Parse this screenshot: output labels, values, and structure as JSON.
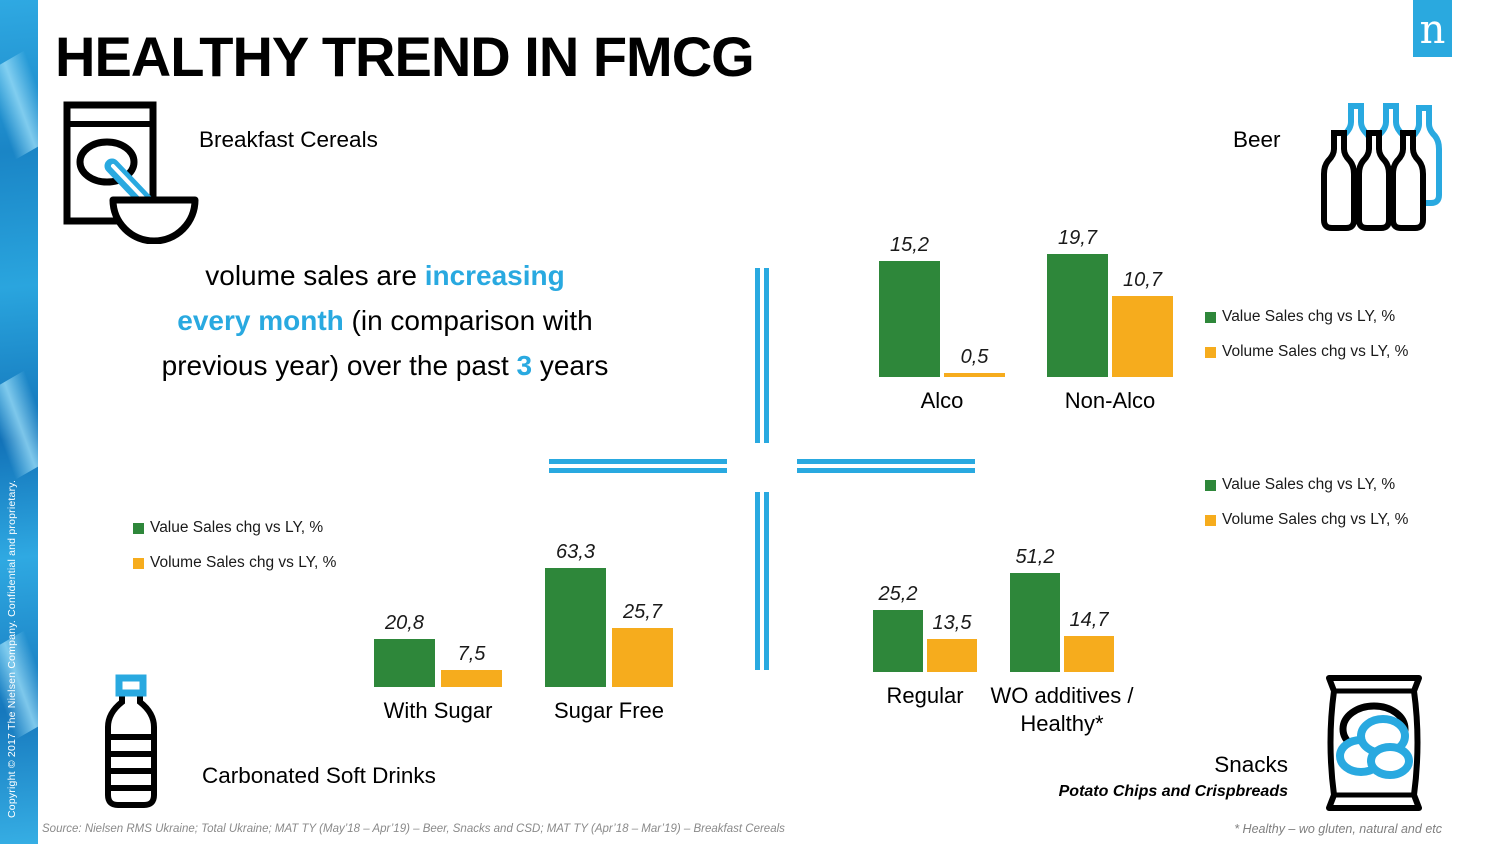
{
  "slide": {
    "title": "HEALTHY TREND IN FMCG",
    "logo_letter": "n",
    "copyright_vertical": "Copyright © 2017 The Nielsen Company. Confidential and proprietary.",
    "source_note": "Source: Nielsen RMS Ukraine; Total Ukraine; MAT TY (May’18 – Apr’19) – Beer, Snacks and CSD; MAT TY (Apr’18 – Mar’19) – Breakfast Cereals",
    "footnote": "* Healthy – wo gluten, natural and etc",
    "accent_blue": "#29A9E0",
    "bar_green": "#2E873A",
    "bar_yellow": "#F6AC1D"
  },
  "headline_lines": [
    [
      {
        "t": "volume sales are ",
        "hl": false
      },
      {
        "t": "increasing",
        "hl": true
      }
    ],
    [
      {
        "t": "every month",
        "hl": true
      },
      {
        "t": " (in comparison with",
        "hl": false
      }
    ],
    [
      {
        "t": "previous year) over the past ",
        "hl": false
      },
      {
        "t": "3",
        "hl": true
      },
      {
        "t": " years",
        "hl": false
      }
    ]
  ],
  "category_labels": {
    "breakfast_cereals": "Breakfast Cereals",
    "beer": "Beer",
    "csd": "Carbonated Soft Drinks",
    "snacks": "Snacks",
    "snacks_sub": "Potato Chips and Crispbreads"
  },
  "legend": {
    "value": "Value Sales chg vs LY, %",
    "volume": "Volume Sales chg vs LY, %"
  },
  "icons": {
    "breakfast_cereals": "cereal-box-and-bowl-icon",
    "beer": "beer-bottles-icon",
    "csd": "soda-bottle-icon",
    "snacks": "chips-bag-icon",
    "logo": "nielsen-n-logo"
  },
  "chart_data": [
    {
      "id": "beer",
      "type": "bar",
      "title": "Beer",
      "categories": [
        "Alco",
        "Non-Alco"
      ],
      "series": [
        {
          "name": "Value Sales chg vs LY, %",
          "color_key": "green",
          "values": [
            15.2,
            19.7
          ],
          "labels": [
            "15,2",
            "19,7"
          ]
        },
        {
          "name": "Volume Sales chg vs LY, %",
          "color_key": "yellow",
          "values": [
            0.5,
            10.7
          ],
          "labels": [
            "0,5",
            "10,7"
          ]
        }
      ],
      "ylim": [
        0,
        19.7
      ],
      "grid": false,
      "legend_position": "right",
      "data_labels": true
    },
    {
      "id": "csd",
      "type": "bar",
      "title": "Carbonated Soft Drinks",
      "categories": [
        "With Sugar",
        "Sugar Free"
      ],
      "series": [
        {
          "name": "Value Sales chg vs LY, %",
          "color_key": "green",
          "values": [
            20.8,
            63.3
          ],
          "labels": [
            "20,8",
            "63,3"
          ]
        },
        {
          "name": "Volume Sales chg vs LY, %",
          "color_key": "yellow",
          "values": [
            7.5,
            25.7
          ],
          "labels": [
            "7,5",
            "25,7"
          ]
        }
      ],
      "ylim": [
        0,
        63.3
      ],
      "grid": false,
      "legend_position": "left",
      "data_labels": true
    },
    {
      "id": "snacks",
      "type": "bar",
      "title": "Snacks — Potato Chips and Crispbreads",
      "categories": [
        "Regular",
        "WO additives /\nHealthy*"
      ],
      "series": [
        {
          "name": "Value Sales chg vs LY, %",
          "color_key": "green",
          "values": [
            25.2,
            51.2
          ],
          "labels": [
            "25,2",
            "51,2"
          ]
        },
        {
          "name": "Volume Sales chg vs LY, %",
          "color_key": "yellow",
          "values": [
            13.5,
            14.7
          ],
          "labels": [
            "13,5",
            "14,7"
          ]
        }
      ],
      "ylim": [
        0,
        51.2
      ],
      "grid": false,
      "legend_position": "right",
      "data_labels": true
    }
  ]
}
